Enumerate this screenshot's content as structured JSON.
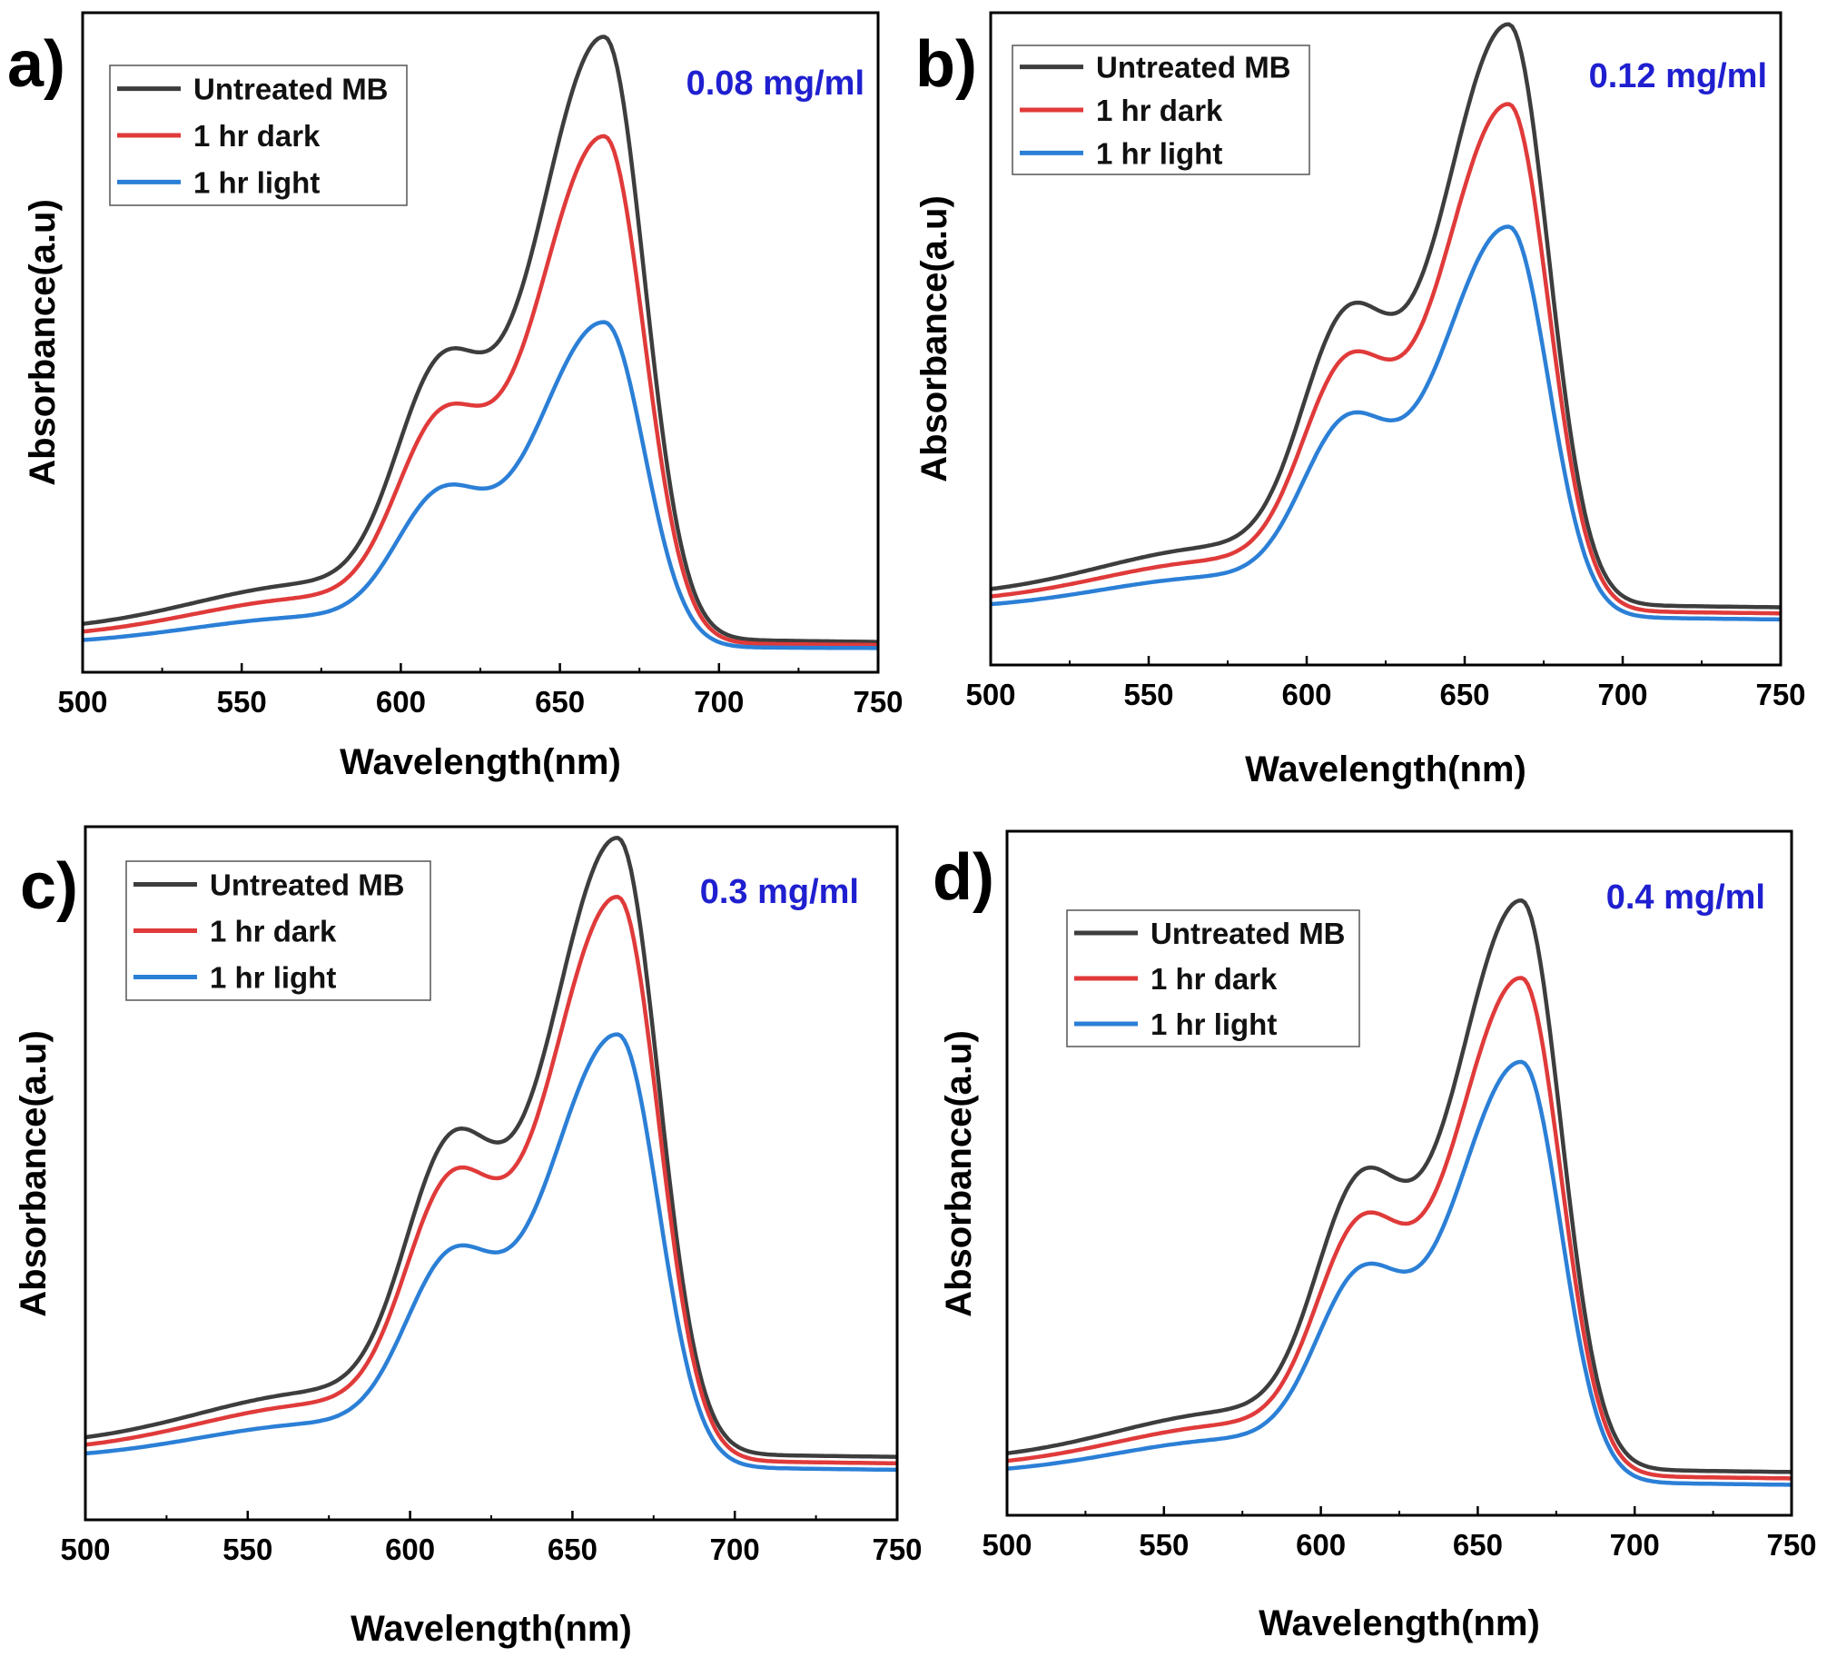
{
  "figure": {
    "palette": {
      "untreated": "#3d3d3d",
      "dark": "#e03a3a",
      "light": "#2b7fd6",
      "concentration": "#1f1fd0",
      "axis": "#000000"
    }
  },
  "chart_data": [
    {
      "type": "line",
      "panel_label": "a)",
      "concentration": "0.08 mg/ml",
      "xlabel": "Wavelength(nm)",
      "ylabel": "Absorbance(a.u)",
      "xlim": [
        500,
        750
      ],
      "ylim": [
        0,
        1.0
      ],
      "xticks": [
        "500",
        "550",
        "600",
        "650",
        "700",
        "750"
      ],
      "yticks_shown": false,
      "legend_position": "top-left",
      "series": [
        {
          "name": "Untreated MB",
          "color": "#3d3d3d",
          "baseline": 0.02,
          "end": 0.005,
          "shoulder": 0.48,
          "peak": 0.98
        },
        {
          "name": "1 hr dark",
          "color": "#e03a3a",
          "baseline": 0.01,
          "end": 0.0,
          "shoulder": 0.39,
          "peak": 0.82
        },
        {
          "name": "1 hr light",
          "color": "#2b7fd6",
          "baseline": 0.0,
          "end": -0.005,
          "shoulder": 0.26,
          "peak": 0.52
        }
      ]
    },
    {
      "type": "line",
      "panel_label": "b)",
      "concentration": "0.12 mg/ml",
      "xlabel": "Wavelength(nm)",
      "ylabel": "Absorbance(a.u)",
      "xlim": [
        500,
        750
      ],
      "ylim": [
        0,
        1.0
      ],
      "xticks": [
        "500",
        "550",
        "600",
        "650",
        "700",
        "750"
      ],
      "yticks_shown": false,
      "legend_position": "top-left",
      "series": [
        {
          "name": "Untreated MB",
          "color": "#3d3d3d",
          "baseline": 0.065,
          "end": 0.05,
          "shoulder": 0.55,
          "peak": 1.0
        },
        {
          "name": "1 hr dark",
          "color": "#e03a3a",
          "baseline": 0.055,
          "end": 0.04,
          "shoulder": 0.47,
          "peak": 0.87
        },
        {
          "name": "1 hr light",
          "color": "#2b7fd6",
          "baseline": 0.045,
          "end": 0.03,
          "shoulder": 0.37,
          "peak": 0.67
        }
      ]
    },
    {
      "type": "line",
      "panel_label": "c)",
      "concentration": "0.3 mg/ml",
      "xlabel": "Wavelength(nm)",
      "ylabel": "Absorbance(a.u)",
      "xlim": [
        500,
        750
      ],
      "ylim": [
        0,
        1.0
      ],
      "xticks": [
        "500",
        "550",
        "600",
        "650",
        "700",
        "750"
      ],
      "yticks_shown": false,
      "legend_position": "top-left",
      "series": [
        {
          "name": "Untreated MB",
          "color": "#3d3d3d",
          "baseline": 0.07,
          "end": 0.055,
          "shoulder": 0.56,
          "peak": 1.0
        },
        {
          "name": "1 hr dark",
          "color": "#e03a3a",
          "baseline": 0.06,
          "end": 0.045,
          "shoulder": 0.5,
          "peak": 0.91
        },
        {
          "name": "1 hr light",
          "color": "#2b7fd6",
          "baseline": 0.05,
          "end": 0.035,
          "shoulder": 0.38,
          "peak": 0.7
        }
      ]
    },
    {
      "type": "line",
      "panel_label": "d)",
      "concentration": "0.4 mg/ml",
      "xlabel": "Wavelength(nm)",
      "ylabel": "Absorbance(a.u)",
      "xlim": [
        500,
        750
      ],
      "ylim": [
        0,
        1.0
      ],
      "xticks": [
        "500",
        "550",
        "600",
        "650",
        "700",
        "750"
      ],
      "yticks_shown": false,
      "legend_position": "top-left",
      "series": [
        {
          "name": "Untreated MB",
          "color": "#3d3d3d",
          "baseline": 0.04,
          "end": 0.025,
          "shoulder": 0.5,
          "peak": 0.91
        },
        {
          "name": "1 hr dark",
          "color": "#e03a3a",
          "baseline": 0.03,
          "end": 0.015,
          "shoulder": 0.43,
          "peak": 0.79
        },
        {
          "name": "1 hr light",
          "color": "#2b7fd6",
          "baseline": 0.02,
          "end": 0.005,
          "shoulder": 0.35,
          "peak": 0.66
        }
      ]
    }
  ]
}
